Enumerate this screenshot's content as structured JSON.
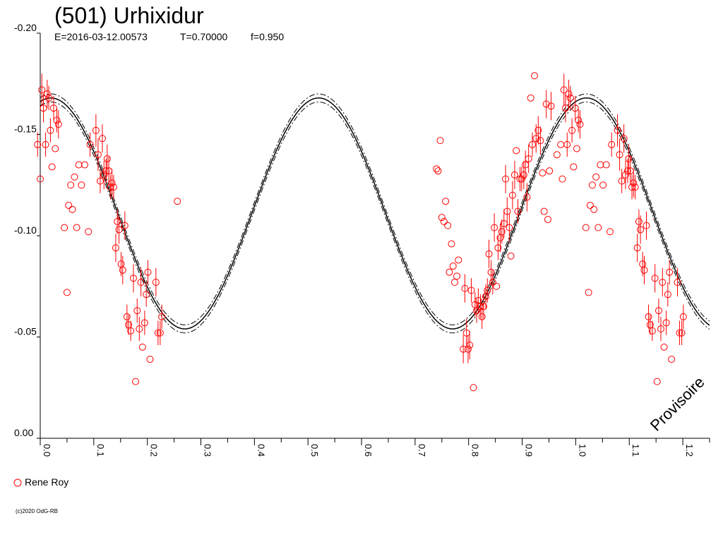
{
  "header": {
    "title": "(501) Urhixidur",
    "epoch": "E=2016-03-12.00573",
    "period": "T=0.70000",
    "fraction": "f=0.950"
  },
  "watermark": "Provisoire",
  "copyright": "(c)2020 OdG-RB",
  "colors": {
    "observations": "#ff0000",
    "curve": "#000000",
    "axis": "#000000"
  },
  "chart_data": {
    "type": "scatter",
    "title": "(501) Urhixidur",
    "xlabel": "",
    "ylabel": "",
    "xlim": [
      0.0,
      1.25
    ],
    "ylim": [
      0.0,
      -0.2
    ],
    "y_inverted": true,
    "grid": false,
    "legend_position": "bottom-left",
    "x_ticks": [
      "0.0",
      "0.1",
      "0.2",
      "0.3",
      "0.4",
      "0.5",
      "0.6",
      "0.7",
      "0.8",
      "0.9",
      "1.0",
      "1.1",
      "1.2"
    ],
    "y_ticks": [
      "-0.20",
      "-0.15",
      "-0.10",
      "-0.05",
      "0.00"
    ],
    "model_curve": {
      "mean": -0.111,
      "amplitude": 0.057,
      "peak_phase": 0.02,
      "cycles_per_phase": 2,
      "envelope_offset": 0.002
    },
    "series": [
      {
        "name": "Rene Roy",
        "marker": "circle",
        "points": [
          [
            -0.005,
            -0.145,
            0.006
          ],
          [
            0.0,
            -0.128,
            0.0
          ],
          [
            0.003,
            -0.172,
            0.008
          ],
          [
            0.006,
            -0.163,
            0.007
          ],
          [
            0.01,
            -0.145,
            0.006
          ],
          [
            0.013,
            -0.17,
            0.007
          ],
          [
            0.016,
            -0.168,
            0.006
          ],
          [
            0.019,
            -0.152,
            0.006
          ],
          [
            0.022,
            -0.134,
            0.0
          ],
          [
            0.025,
            -0.163,
            0.006
          ],
          [
            0.028,
            -0.143,
            0.0
          ],
          [
            0.031,
            -0.157,
            0.006
          ],
          [
            0.034,
            -0.155,
            0.007
          ],
          [
            0.045,
            -0.104,
            0.0
          ],
          [
            0.05,
            -0.072,
            0.0
          ],
          [
            0.053,
            -0.115,
            0.0
          ],
          [
            0.057,
            -0.125,
            0.0
          ],
          [
            0.06,
            -0.113,
            0.0
          ],
          [
            0.064,
            -0.129,
            0.0
          ],
          [
            0.068,
            -0.104,
            0.0
          ],
          [
            0.072,
            -0.135,
            0.0
          ],
          [
            0.077,
            -0.125,
            0.0
          ],
          [
            0.083,
            -0.135,
            0.0
          ],
          [
            0.09,
            -0.102,
            0.0
          ],
          [
            0.093,
            -0.145,
            0.006
          ],
          [
            0.104,
            -0.152,
            0.008
          ],
          [
            0.108,
            -0.14,
            0.008
          ],
          [
            0.112,
            -0.127,
            0.006
          ],
          [
            0.116,
            -0.148,
            0.007
          ],
          [
            0.119,
            -0.13,
            0.007
          ],
          [
            0.123,
            -0.132,
            0.006
          ],
          [
            0.125,
            -0.138,
            0.007
          ],
          [
            0.128,
            -0.132,
            0.007
          ],
          [
            0.131,
            -0.124,
            0.006
          ],
          [
            0.134,
            -0.126,
            0.007
          ],
          [
            0.137,
            -0.124,
            0.006
          ],
          [
            0.141,
            -0.094,
            0.007
          ],
          [
            0.144,
            -0.107,
            0.006
          ],
          [
            0.147,
            -0.103,
            0.007
          ],
          [
            0.151,
            -0.086,
            0.006
          ],
          [
            0.154,
            -0.083,
            0.007
          ],
          [
            0.158,
            -0.105,
            0.007
          ],
          [
            0.162,
            -0.06,
            0.006
          ],
          [
            0.165,
            -0.056,
            0.005
          ],
          [
            0.169,
            -0.053,
            0.005
          ],
          [
            0.174,
            -0.079,
            0.007
          ],
          [
            0.178,
            -0.028,
            0.0
          ],
          [
            0.181,
            -0.063,
            0.006
          ],
          [
            0.185,
            -0.054,
            0.006
          ],
          [
            0.188,
            -0.077,
            0.007
          ],
          [
            0.191,
            -0.045,
            0.0
          ],
          [
            0.195,
            -0.057,
            0.006
          ],
          [
            0.198,
            -0.071,
            0.006
          ],
          [
            0.201,
            -0.082,
            0.006
          ],
          [
            0.205,
            -0.039,
            0.0
          ],
          [
            0.216,
            -0.077,
            0.007
          ],
          [
            0.22,
            -0.052,
            0.006
          ],
          [
            0.224,
            -0.052,
            0.006
          ],
          [
            0.227,
            -0.06,
            0.006
          ],
          [
            0.256,
            -0.117,
            0.0
          ],
          [
            0.74,
            -0.133,
            0.0
          ],
          [
            0.743,
            -0.132,
            0.0
          ],
          [
            0.747,
            -0.147,
            0.0
          ],
          [
            0.75,
            -0.109,
            0.0
          ],
          [
            0.754,
            -0.107,
            0.0
          ],
          [
            0.757,
            -0.117,
            0.0
          ],
          [
            0.761,
            -0.105,
            0.0
          ],
          [
            0.764,
            -0.082,
            0.0
          ],
          [
            0.768,
            -0.096,
            0.0
          ],
          [
            0.771,
            -0.085,
            0.0
          ],
          [
            0.774,
            -0.077,
            0.0
          ],
          [
            0.778,
            -0.08,
            0.0
          ],
          [
            0.781,
            -0.088,
            0.0
          ],
          [
            0.79,
            -0.044,
            0.007
          ],
          [
            0.793,
            -0.074,
            0.007
          ],
          [
            0.796,
            -0.052,
            0.007
          ],
          [
            0.799,
            -0.044,
            0.007
          ],
          [
            0.802,
            -0.046,
            0.007
          ],
          [
            0.805,
            -0.073,
            0.006
          ],
          [
            0.809,
            -0.025,
            0.0
          ],
          [
            0.812,
            -0.066,
            0.006
          ],
          [
            0.815,
            -0.063,
            0.006
          ],
          [
            0.818,
            -0.068,
            0.006
          ],
          [
            0.822,
            -0.065,
            0.006
          ],
          [
            0.825,
            -0.06,
            0.006
          ],
          [
            0.828,
            -0.065,
            0.006
          ],
          [
            0.832,
            -0.07,
            0.006
          ],
          [
            0.835,
            -0.073,
            0.006
          ],
          [
            0.838,
            -0.091,
            0.007
          ],
          [
            0.842,
            -0.082,
            0.006
          ],
          [
            0.845,
            -0.077,
            0.006
          ],
          [
            0.848,
            -0.104,
            0.007
          ],
          [
            0.852,
            -0.075,
            0.0
          ],
          [
            0.855,
            -0.094,
            0.006
          ],
          [
            0.859,
            -0.099,
            0.007
          ],
          [
            0.862,
            -0.102,
            0.006
          ],
          [
            0.866,
            -0.106,
            0.007
          ],
          [
            0.869,
            -0.128,
            0.007
          ],
          [
            0.872,
            -0.112,
            0.007
          ],
          [
            0.876,
            -0.104,
            0.007
          ],
          [
            0.879,
            -0.09,
            0.0
          ],
          [
            0.882,
            -0.12,
            0.007
          ],
          [
            0.886,
            -0.13,
            0.007
          ],
          [
            0.889,
            -0.142,
            0.0
          ],
          [
            0.892,
            -0.112,
            0.006
          ],
          [
            0.896,
            -0.128,
            0.006
          ],
          [
            0.899,
            -0.128,
            0.006
          ],
          [
            0.903,
            -0.13,
            0.007
          ],
          [
            0.906,
            -0.135,
            0.007
          ],
          [
            0.909,
            -0.119,
            0.007
          ],
          [
            0.912,
            -0.138,
            0.007
          ],
          [
            0.916,
            -0.168,
            0.0
          ],
          [
            0.919,
            -0.145,
            0.006
          ],
          [
            0.923,
            -0.179,
            0.0
          ],
          [
            0.926,
            -0.148,
            0.007
          ],
          [
            0.93,
            -0.152,
            0.007
          ],
          [
            0.934,
            -0.147,
            0.007
          ],
          [
            0.938,
            -0.131,
            0.0
          ],
          [
            0.941,
            -0.112,
            0.0
          ],
          [
            0.945,
            -0.165,
            0.007
          ],
          [
            0.948,
            -0.108,
            0.0
          ],
          [
            0.951,
            -0.132,
            0.0
          ],
          [
            0.954,
            -0.164,
            0.007
          ],
          [
            0.965,
            -0.14,
            0.0
          ],
          [
            0.972,
            -0.145,
            0.0
          ],
          [
            0.975,
            -0.128,
            0.0
          ],
          [
            0.978,
            -0.172,
            0.008
          ],
          [
            0.981,
            -0.163,
            0.007
          ],
          [
            0.984,
            -0.145,
            0.006
          ],
          [
            0.987,
            -0.17,
            0.007
          ],
          [
            0.99,
            -0.168,
            0.006
          ],
          [
            0.993,
            -0.152,
            0.006
          ],
          [
            0.996,
            -0.134,
            0.0
          ],
          [
            0.999,
            -0.163,
            0.006
          ],
          [
            1.002,
            -0.143,
            0.0
          ],
          [
            1.005,
            -0.157,
            0.006
          ],
          [
            1.008,
            -0.155,
            0.007
          ],
          [
            1.019,
            -0.104,
            0.0
          ],
          [
            1.024,
            -0.072,
            0.0
          ],
          [
            1.027,
            -0.115,
            0.0
          ],
          [
            1.031,
            -0.125,
            0.0
          ],
          [
            1.034,
            -0.113,
            0.0
          ],
          [
            1.038,
            -0.129,
            0.0
          ],
          [
            1.042,
            -0.104,
            0.0
          ],
          [
            1.046,
            -0.135,
            0.0
          ],
          [
            1.051,
            -0.125,
            0.0
          ],
          [
            1.057,
            -0.135,
            0.0
          ],
          [
            1.064,
            -0.102,
            0.0
          ],
          [
            1.067,
            -0.145,
            0.006
          ],
          [
            1.078,
            -0.152,
            0.008
          ],
          [
            1.082,
            -0.14,
            0.008
          ],
          [
            1.086,
            -0.127,
            0.006
          ],
          [
            1.09,
            -0.148,
            0.007
          ],
          [
            1.093,
            -0.13,
            0.007
          ],
          [
            1.097,
            -0.132,
            0.006
          ],
          [
            1.099,
            -0.138,
            0.007
          ],
          [
            1.102,
            -0.132,
            0.007
          ],
          [
            1.105,
            -0.124,
            0.006
          ],
          [
            1.108,
            -0.126,
            0.007
          ],
          [
            1.111,
            -0.124,
            0.006
          ],
          [
            1.115,
            -0.094,
            0.007
          ],
          [
            1.118,
            -0.107,
            0.006
          ],
          [
            1.121,
            -0.103,
            0.007
          ],
          [
            1.125,
            -0.086,
            0.006
          ],
          [
            1.128,
            -0.083,
            0.007
          ],
          [
            1.132,
            -0.105,
            0.007
          ],
          [
            1.136,
            -0.06,
            0.006
          ],
          [
            1.139,
            -0.056,
            0.005
          ],
          [
            1.143,
            -0.053,
            0.005
          ],
          [
            1.148,
            -0.079,
            0.007
          ],
          [
            1.152,
            -0.028,
            0.0
          ],
          [
            1.155,
            -0.063,
            0.006
          ],
          [
            1.159,
            -0.054,
            0.006
          ],
          [
            1.162,
            -0.077,
            0.007
          ],
          [
            1.165,
            -0.045,
            0.0
          ],
          [
            1.169,
            -0.057,
            0.006
          ],
          [
            1.172,
            -0.071,
            0.006
          ],
          [
            1.175,
            -0.082,
            0.006
          ],
          [
            1.179,
            -0.039,
            0.0
          ],
          [
            1.19,
            -0.077,
            0.007
          ],
          [
            1.194,
            -0.052,
            0.006
          ],
          [
            1.198,
            -0.052,
            0.006
          ],
          [
            1.201,
            -0.06,
            0.006
          ]
        ]
      }
    ]
  }
}
